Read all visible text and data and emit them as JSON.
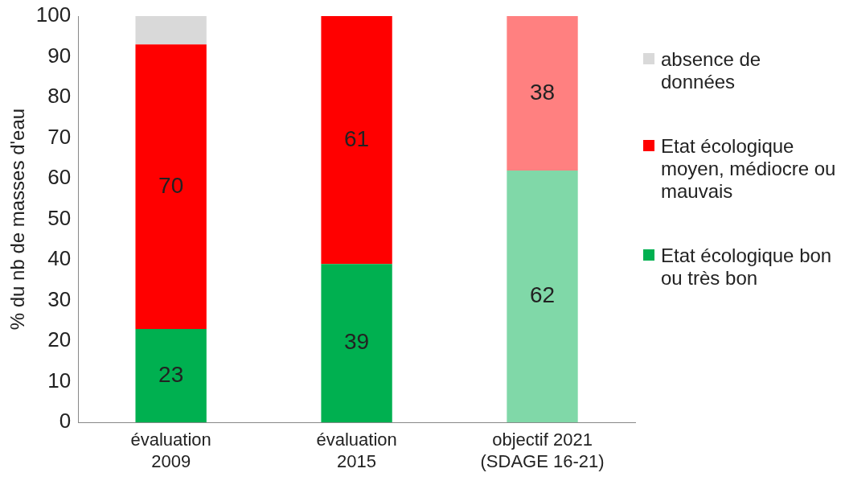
{
  "chart_data": {
    "type": "bar",
    "stacked": true,
    "ylabel": "% du nb de masses d'eau",
    "categories": [
      "évaluation\n2009",
      "évaluation\n2015",
      "objectif 2021\n(SDAGE 16-21)"
    ],
    "series": [
      {
        "name": "Etat écologique bon ou très bon",
        "color": "#00b050",
        "colors": [
          "#00b050",
          "#00b050",
          "#80d8a8"
        ],
        "values": [
          23,
          39,
          62
        ],
        "value_labels": [
          "23",
          "39",
          "62"
        ]
      },
      {
        "name": "Etat écologique moyen, médiocre ou mauvais",
        "color": "#ff0000",
        "colors": [
          "#ff0000",
          "#ff0000",
          "#ff8080"
        ],
        "values": [
          70,
          61,
          38
        ],
        "value_labels": [
          "70",
          "61",
          "38"
        ]
      },
      {
        "name": "absence de données",
        "color": "#d9d9d9",
        "values": [
          7,
          0,
          0
        ]
      }
    ],
    "ylim": [
      0,
      100
    ],
    "yticks": [
      0,
      10,
      20,
      30,
      40,
      50,
      60,
      70,
      80,
      90,
      100
    ],
    "grid": false,
    "legend": "right"
  }
}
